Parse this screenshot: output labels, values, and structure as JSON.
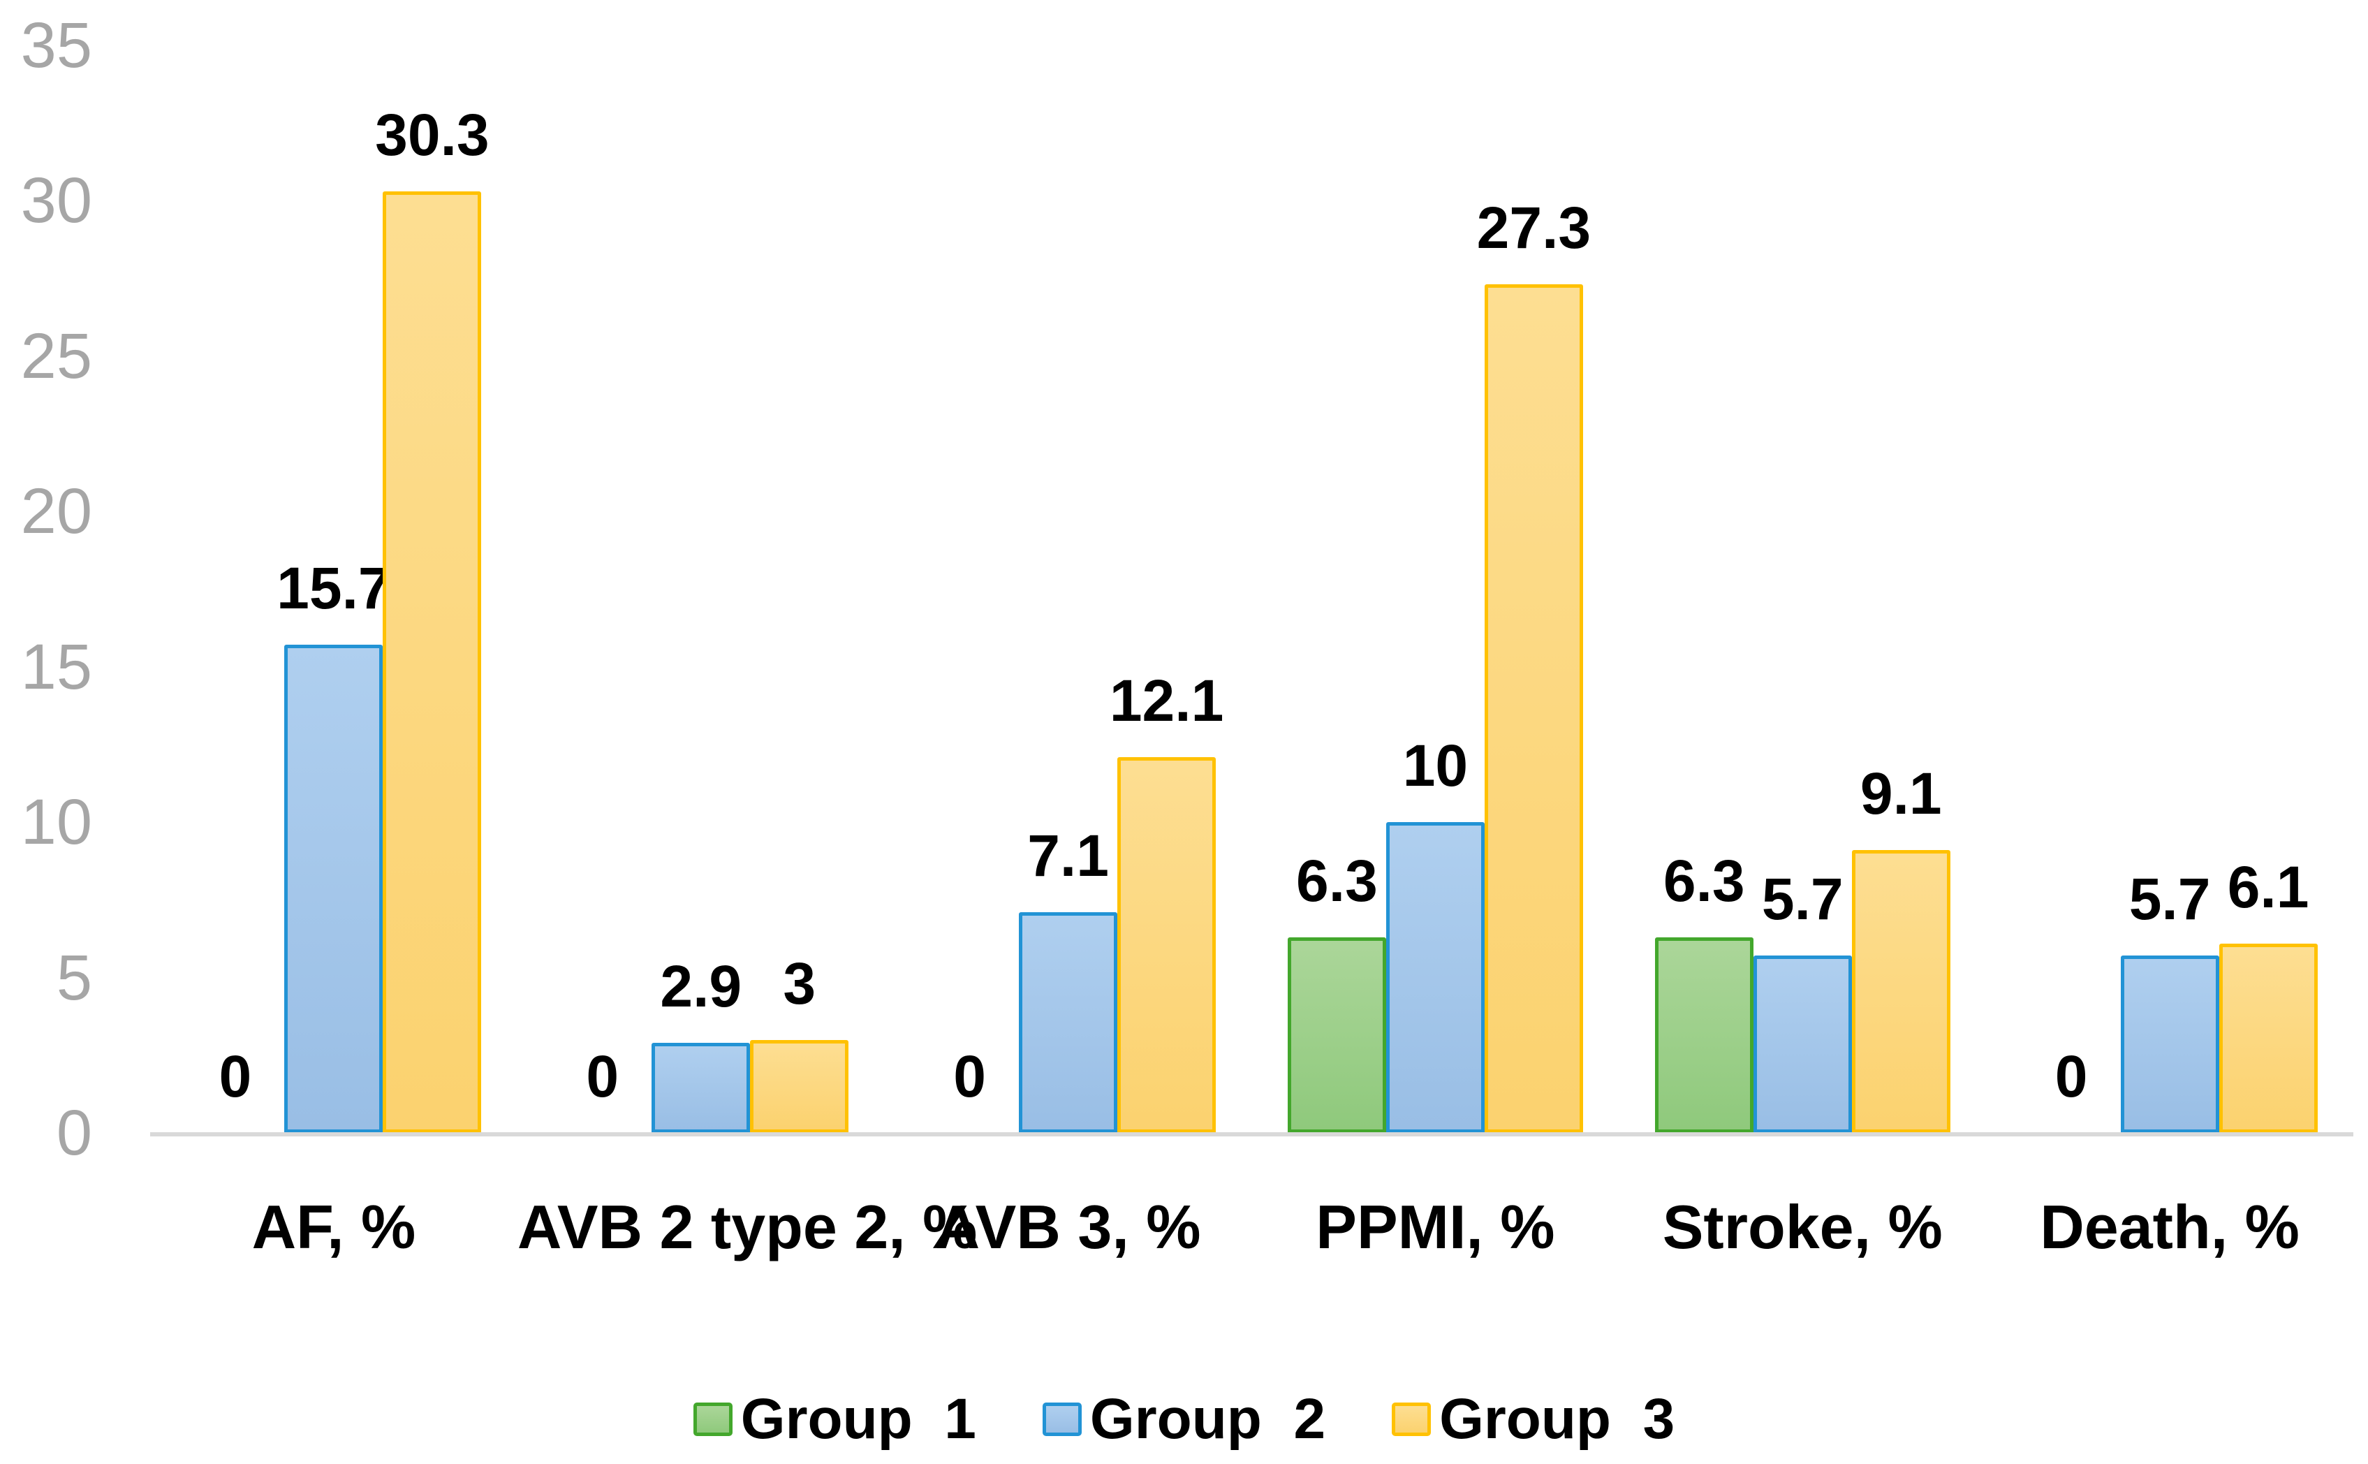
{
  "chart_data": {
    "type": "bar",
    "title": "",
    "xlabel": "",
    "ylabel": "",
    "grid": false,
    "legend_position": "bottom",
    "categories": [
      "AF, %",
      "AVB 2 type 2, %",
      "AVB 3, %",
      "PPMI, %",
      "Stroke, %",
      "Death, %"
    ],
    "series": [
      {
        "name": "Group  1",
        "values": [
          0,
          0,
          0,
          6.3,
          6.3,
          0
        ],
        "labels": [
          "0",
          "0",
          "0",
          "6.3",
          "6.3",
          "0"
        ],
        "fill_top": "#ABD699",
        "fill_bottom": "#8FC97C",
        "border": "#43A72C"
      },
      {
        "name": "Group  2",
        "values": [
          15.7,
          2.9,
          7.1,
          10,
          5.7,
          5.7
        ],
        "labels": [
          "15.7",
          "2.9",
          "7.1",
          "10",
          "5.7",
          "5.7"
        ],
        "fill_top": "#AFCFEF",
        "fill_bottom": "#99BEE5",
        "border": "#2293D5"
      },
      {
        "name": "Group  3",
        "values": [
          30.3,
          3,
          12.1,
          27.3,
          9.1,
          6.1
        ],
        "labels": [
          "30.3",
          "3",
          "12.1",
          "27.3",
          "9.1",
          "6.1"
        ],
        "fill_top": "#FDDE92",
        "fill_bottom": "#FBD26F",
        "border": "#FFC103"
      }
    ],
    "y_axis": {
      "min": 0,
      "max": 35,
      "tick_step": 5,
      "tick_labels": [
        "0",
        "5",
        "10",
        "15",
        "20",
        "25",
        "30",
        "35"
      ],
      "tick_color": "#A6A6A6"
    },
    "axis_line_color": "#D9D9D9",
    "data_label_color": "#000000"
  }
}
